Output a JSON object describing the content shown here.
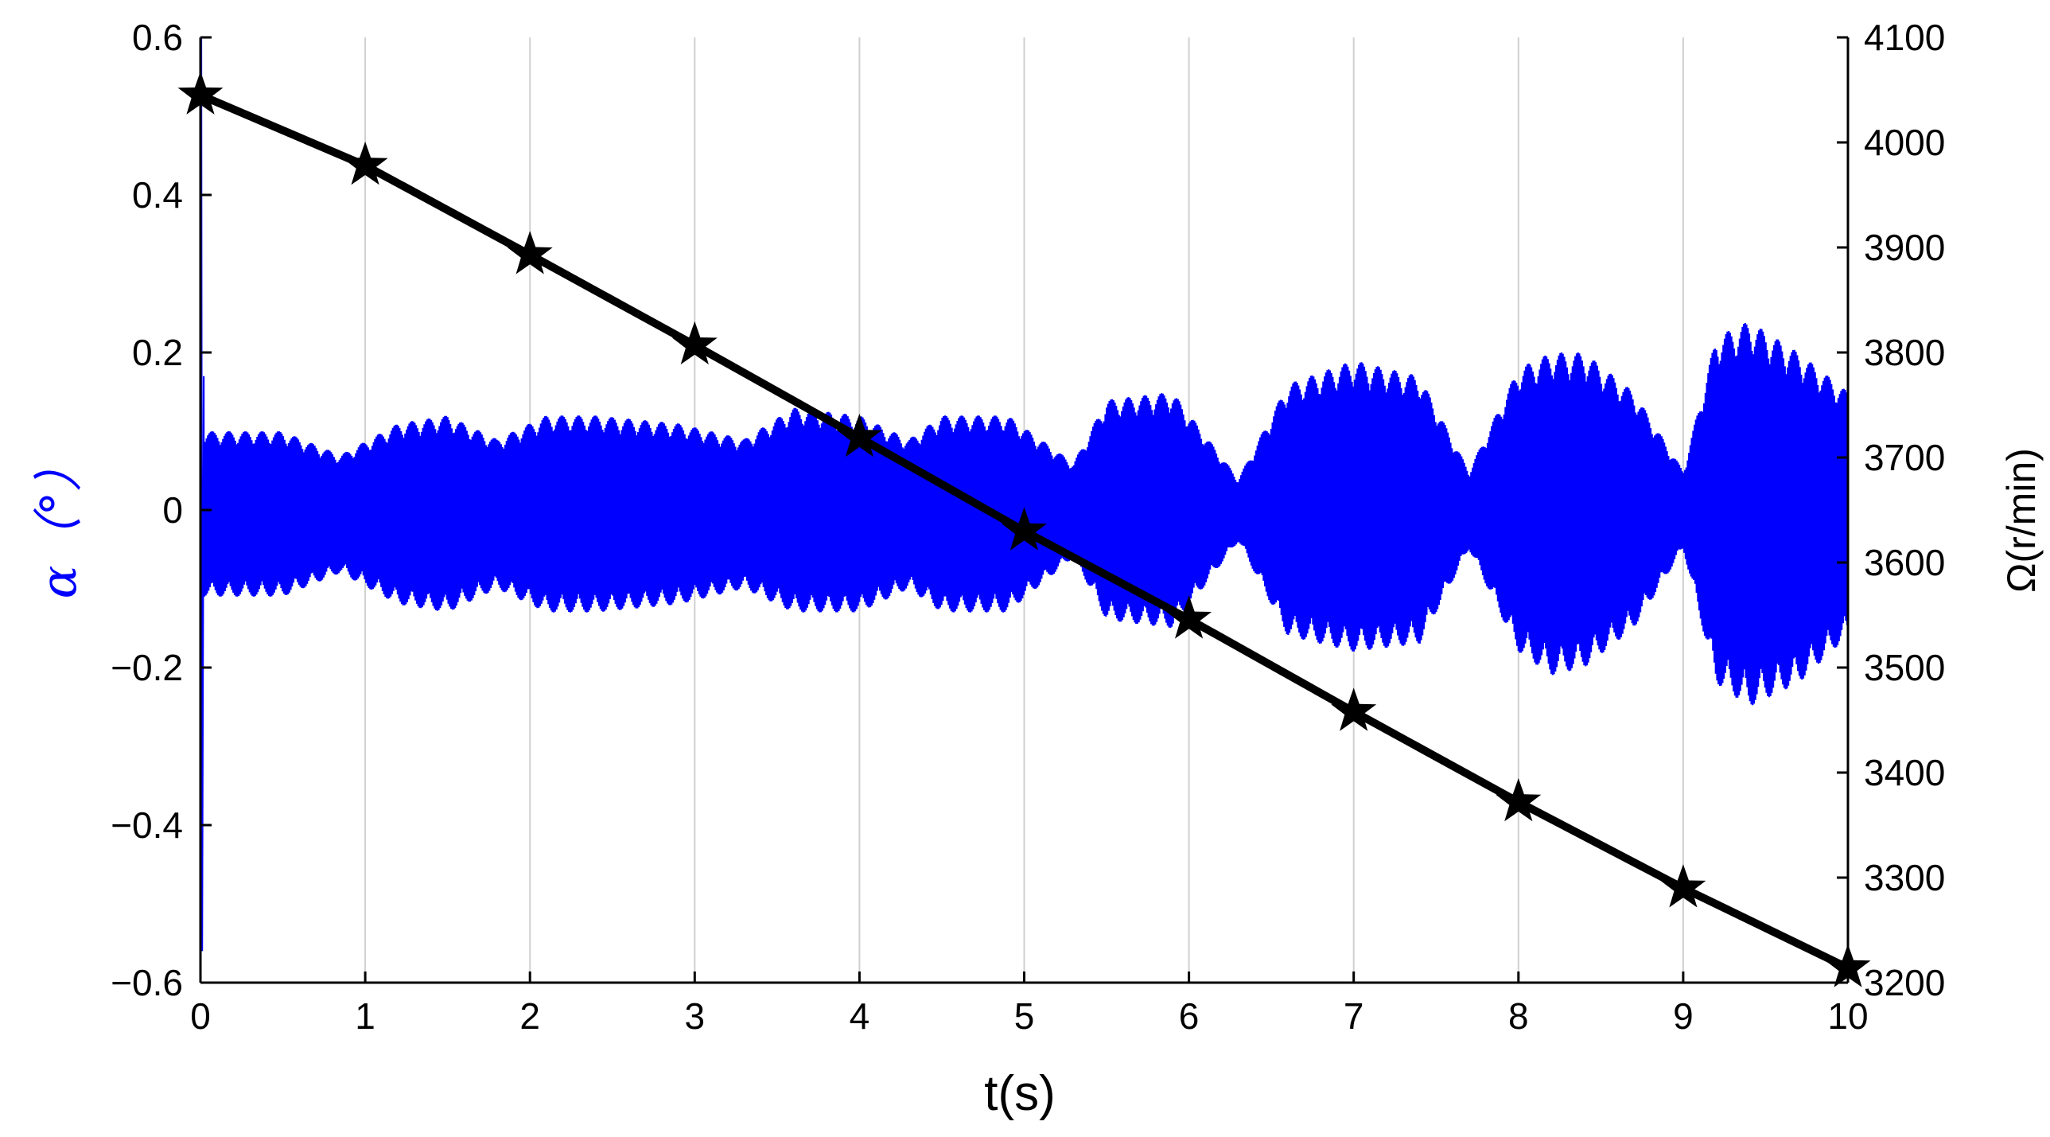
{
  "chart_data": {
    "type": "line",
    "xlabel": "t(s)",
    "ylabel_left": "α（°）",
    "ylabel_right": "Ω(r/min)",
    "xlim": [
      0,
      10
    ],
    "ylim_left": [
      -0.6,
      0.6
    ],
    "ylim_right": [
      3200,
      4100
    ],
    "x_ticks": [
      "0",
      "1",
      "2",
      "3",
      "4",
      "5",
      "6",
      "7",
      "8",
      "9",
      "10"
    ],
    "y_left_ticks": [
      "0.6",
      "0.4",
      "0.2",
      "0",
      "−0.2",
      "−0.4",
      "−0.6"
    ],
    "y_right_ticks": [
      "4100",
      "4000",
      "3900",
      "3800",
      "3700",
      "3600",
      "3500",
      "3400",
      "3300",
      "3200"
    ],
    "grid": "vertical",
    "colors": {
      "alpha_series": "#0000ff",
      "omega_series": "#000000",
      "grid": "#d0d0d0"
    },
    "series": [
      {
        "axis": "right",
        "marker": "star",
        "x": [
          0,
          1,
          2,
          3,
          4,
          5,
          6,
          7,
          8,
          9,
          10
        ],
        "values": [
          4045,
          3978,
          3893,
          3807,
          3719,
          3630,
          3546,
          3458,
          3372,
          3290,
          3214
        ]
      },
      {
        "axis": "left",
        "kind": "oscillation",
        "initial_transient": {
          "t": 0.02,
          "max": 0.6,
          "min": -0.56
        },
        "envelope": {
          "t": [
            0.05,
            0.5,
            0.85,
            1.2,
            1.5,
            1.8,
            2.1,
            2.4,
            2.9,
            3.3,
            3.6,
            4.0,
            4.3,
            4.5,
            4.9,
            5.3,
            5.5,
            5.9,
            6.3,
            6.6,
            7.0,
            7.4,
            7.7,
            8.0,
            8.2,
            8.4,
            8.7,
            9.0,
            9.2,
            9.4,
            9.7,
            10.0
          ],
          "upper": [
            0.1,
            0.1,
            0.07,
            0.11,
            0.12,
            0.09,
            0.12,
            0.12,
            0.11,
            0.09,
            0.13,
            0.12,
            0.09,
            0.12,
            0.12,
            0.06,
            0.14,
            0.15,
            0.04,
            0.16,
            0.19,
            0.17,
            0.05,
            0.18,
            0.2,
            0.2,
            0.15,
            0.05,
            0.22,
            0.24,
            0.2,
            0.15
          ],
          "lower": [
            -0.11,
            -0.11,
            -0.08,
            -0.12,
            -0.13,
            -0.1,
            -0.13,
            -0.13,
            -0.12,
            -0.1,
            -0.13,
            -0.13,
            -0.1,
            -0.13,
            -0.13,
            -0.06,
            -0.14,
            -0.15,
            -0.04,
            -0.16,
            -0.18,
            -0.17,
            -0.05,
            -0.18,
            -0.21,
            -0.2,
            -0.15,
            -0.05,
            -0.22,
            -0.25,
            -0.22,
            -0.16
          ]
        }
      }
    ]
  }
}
